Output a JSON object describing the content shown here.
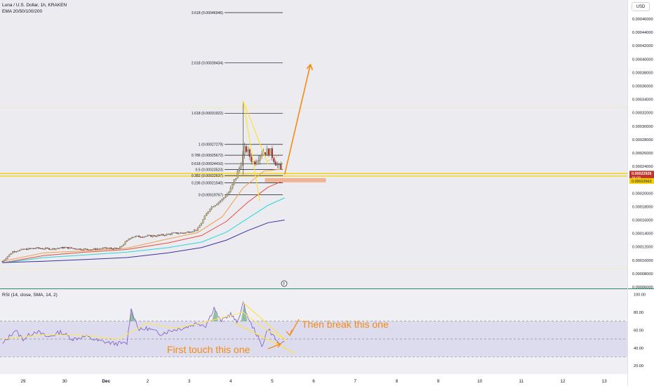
{
  "header": {
    "symbol_line": "Luna / U.S. Dollar, 1h, KRAKEN",
    "indicator_line": "EMA 20/50/100/200",
    "currency_button": "USD"
  },
  "colors": {
    "background": "#ffffff",
    "price_panel_bg": "#ececf0",
    "rsi_panel_bg": "#f0f0f4",
    "rsi_band_fill": "#d9d8ec",
    "rsi_line": "#7e57c2",
    "rsi_sma": "#ffe94d",
    "rsi_overbought_fill": "#86b99b",
    "candle_up": "#c9b47a",
    "candle_down": "#c3332b",
    "ema20": "#f0a04b",
    "ema50": "#e74c3c",
    "ema100": "#2ad6d8",
    "ema200": "#3f2f9e",
    "fib_line": "#131722",
    "support_line": "#f5d000",
    "annotation_orange": "#f58a12",
    "triangle_yellow": "#ffe23a",
    "price_tag_bg": "#c3332b",
    "separator": "#2a8a6e"
  },
  "chart_data": [
    {
      "type": "candlestick",
      "title": "Luna / U.S. Dollar, 1h, KRAKEN",
      "indicators": [
        "EMA 20/50/100/200"
      ],
      "ylim": [
        6e-05,
        0.00046
      ],
      "price_axis_ticks": [
        "0.00046000",
        "0.00044000",
        "0.00042000",
        "0.00040000",
        "0.00038000",
        "0.00036000",
        "0.00034000",
        "0.00032000",
        "0.00030000",
        "0.00028000",
        "0.00026000",
        "0.00024000",
        "0.00022000",
        "0.00020000",
        "0.00018000",
        "0.00016000",
        "0.00014000",
        "0.00012000",
        "0.00010000",
        "0.00008000",
        "0.00006000"
      ],
      "price_axis_tick_values": [
        0.00046,
        0.00044,
        0.00042,
        0.0004,
        0.00038,
        0.00036,
        0.00034,
        0.00032,
        0.0003,
        0.00028,
        0.00026,
        0.00024,
        0.00022,
        0.0002,
        0.00018,
        0.00016,
        0.00014,
        0.00012,
        0.0001,
        8e-05,
        6e-05
      ],
      "time_axis": {
        "labels": [
          "29",
          "30",
          "Dec",
          "2",
          "3",
          "4",
          "5",
          "6",
          "7",
          "8",
          "9",
          "10",
          "11",
          "12",
          "13"
        ],
        "day_index": [
          0,
          1,
          2,
          3,
          4,
          5,
          6,
          7,
          8,
          9,
          10,
          11,
          12,
          13,
          14
        ]
      },
      "current_price": {
        "label": "0.00022926",
        "countdown": "46:08",
        "value": 0.00022926
      },
      "support_level": {
        "label": "0.00022663",
        "value": 0.00022663
      },
      "fib_levels": [
        {
          "label": "3.618 (0.00046946)",
          "ratio": 3.618,
          "price": 0.00046946
        },
        {
          "label": "2.618 (0.00039434)",
          "ratio": 2.618,
          "price": 0.00039434
        },
        {
          "label": "1.618 (0.00031922)",
          "ratio": 1.618,
          "price": 0.00031922
        },
        {
          "label": "1 (0.00027279)",
          "ratio": 1,
          "price": 0.00027279
        },
        {
          "label": "0.786 (0.00025672)",
          "ratio": 0.786,
          "price": 0.00025672
        },
        {
          "label": "0.618 (0.00024410)",
          "ratio": 0.618,
          "price": 0.0002441
        },
        {
          "label": "0.5 (0.00023523)",
          "ratio": 0.5,
          "price": 0.00023523
        },
        {
          "label": "0.382 (0.00022637)",
          "ratio": 0.382,
          "price": 0.00022637
        },
        {
          "label": "0.236 (0.00021540)",
          "ratio": 0.236,
          "price": 0.0002154
        },
        {
          "label": "0 (0.00019767)",
          "ratio": 0,
          "price": 0.00019767
        }
      ],
      "candles_close_keypoints": [
        {
          "day": -0.5,
          "price": 9.85e-05
        },
        {
          "day": -0.25,
          "price": 0.000113
        },
        {
          "day": 0.0,
          "price": 0.000116
        },
        {
          "day": 0.3,
          "price": 0.000118
        },
        {
          "day": 0.7,
          "price": 0.000117
        },
        {
          "day": 1.0,
          "price": 0.000119
        },
        {
          "day": 1.3,
          "price": 0.000117
        },
        {
          "day": 1.6,
          "price": 0.000116
        },
        {
          "day": 2.0,
          "price": 0.000118
        },
        {
          "day": 2.3,
          "price": 0.000117
        },
        {
          "day": 2.6,
          "price": 0.000135
        },
        {
          "day": 3.0,
          "price": 0.000136
        },
        {
          "day": 3.3,
          "price": 0.000137
        },
        {
          "day": 3.6,
          "price": 0.00014
        },
        {
          "day": 3.9,
          "price": 0.000141
        },
        {
          "day": 4.2,
          "price": 0.000146
        },
        {
          "day": 4.5,
          "price": 0.000178
        },
        {
          "day": 4.8,
          "price": 0.000191
        },
        {
          "day": 5.0,
          "price": 0.000205
        },
        {
          "day": 5.2,
          "price": 0.000236
        },
        {
          "day": 5.35,
          "price": 0.000268
        },
        {
          "day": 5.55,
          "price": 0.000245
        },
        {
          "day": 5.75,
          "price": 0.000262
        },
        {
          "day": 5.95,
          "price": 0.000262
        },
        {
          "day": 6.1,
          "price": 0.000244
        },
        {
          "day": 6.25,
          "price": 0.000231
        }
      ],
      "ema_lines": [
        {
          "name": "EMA 20",
          "points": [
            [
              -0.5,
              9.85e-05
            ],
            [
              0.5,
              0.000111
            ],
            [
              1.5,
              0.000114
            ],
            [
              2.5,
              0.000118
            ],
            [
              3.5,
              0.000132
            ],
            [
              4.2,
              0.000141
            ],
            [
              4.8,
              0.000165
            ],
            [
              5.3,
              0.000208
            ],
            [
              5.8,
              0.000233
            ],
            [
              6.25,
              0.000236
            ]
          ]
        },
        {
          "name": "EMA 50",
          "points": [
            [
              -0.5,
              9.6e-05
            ],
            [
              0.5,
              0.000107
            ],
            [
              1.5,
              0.000112
            ],
            [
              2.5,
              0.000116
            ],
            [
              3.5,
              0.000126
            ],
            [
              4.3,
              0.000137
            ],
            [
              4.9,
              0.000158
            ],
            [
              5.4,
              0.000186
            ],
            [
              5.9,
              0.000209
            ],
            [
              6.25,
              0.000218
            ]
          ]
        },
        {
          "name": "EMA 100",
          "points": [
            [
              -0.5,
              9.6e-05
            ],
            [
              0.5,
              0.000104
            ],
            [
              1.5,
              0.000108
            ],
            [
              2.5,
              0.000112
            ],
            [
              3.5,
              0.000119
            ],
            [
              4.3,
              0.000127
            ],
            [
              4.9,
              0.000142
            ],
            [
              5.4,
              0.000162
            ],
            [
              5.9,
              0.000182
            ],
            [
              6.3,
              0.000193
            ]
          ]
        },
        {
          "name": "EMA 200",
          "points": [
            [
              -0.5,
              9.65e-05
            ],
            [
              0.5,
              9.85e-05
            ],
            [
              1.5,
              0.000101
            ],
            [
              2.5,
              0.000104
            ],
            [
              3.5,
              0.000111
            ],
            [
              4.3,
              0.000119
            ],
            [
              4.9,
              0.00013
            ],
            [
              5.4,
              0.000144
            ],
            [
              5.9,
              0.000156
            ],
            [
              6.3,
              0.00016
            ]
          ]
        }
      ],
      "projection_arrow": [
        [
          6.3,
          0.000228
        ],
        [
          6.92,
          0.000392
        ]
      ],
      "marker_letter": "F"
    },
    {
      "type": "line",
      "title": "RSI (14, close, SMA, 14, 2)",
      "ylim": [
        15,
        100
      ],
      "y_ticks": [
        "100.00",
        "80.00",
        "60.00",
        "40.00",
        "20.00"
      ],
      "y_tick_values": [
        100,
        80,
        60,
        40,
        20
      ],
      "band": [
        30,
        70
      ],
      "midline": 50,
      "series": [
        {
          "name": "RSI",
          "points": [
            [
              -0.5,
              44
            ],
            [
              -0.2,
              60
            ],
            [
              0.0,
              50
            ],
            [
              0.3,
              59
            ],
            [
              0.6,
              52
            ],
            [
              0.9,
              58
            ],
            [
              1.2,
              50
            ],
            [
              1.5,
              53
            ],
            [
              1.8,
              48
            ],
            [
              2.2,
              45
            ],
            [
              2.5,
              45
            ],
            [
              2.6,
              83
            ],
            [
              2.8,
              60
            ],
            [
              3.0,
              62
            ],
            [
              3.3,
              56
            ],
            [
              3.6,
              60
            ],
            [
              3.9,
              63
            ],
            [
              4.2,
              68
            ],
            [
              4.4,
              65
            ],
            [
              4.6,
              85
            ],
            [
              4.75,
              70
            ],
            [
              5.0,
              78
            ],
            [
              5.15,
              68
            ],
            [
              5.3,
              90
            ],
            [
              5.45,
              70
            ],
            [
              5.6,
              58
            ],
            [
              5.75,
              42
            ],
            [
              5.9,
              62
            ],
            [
              6.05,
              52
            ],
            [
              6.2,
              42
            ],
            [
              6.3,
              47
            ]
          ]
        },
        {
          "name": "RSI SMA",
          "points": [
            [
              -0.5,
              50
            ],
            [
              0.5,
              55
            ],
            [
              1.5,
              54
            ],
            [
              2.3,
              50
            ],
            [
              3.0,
              68
            ],
            [
              3.6,
              62
            ],
            [
              4.2,
              67
            ],
            [
              4.8,
              74
            ],
            [
              5.3,
              80
            ],
            [
              5.8,
              62
            ],
            [
              6.3,
              50
            ]
          ]
        }
      ],
      "annotations": [
        {
          "text": "Then break this one"
        },
        {
          "text": "First touch this one"
        }
      ]
    }
  ]
}
